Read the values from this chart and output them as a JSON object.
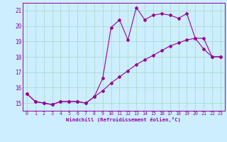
{
  "title": "",
  "xlabel": "Windchill (Refroidissement éolien,°C)",
  "ylabel": "",
  "background_color": "#cceeff",
  "line_color": "#990099",
  "grid_color": "#aaddcc",
  "xlim": [
    -0.5,
    23.5
  ],
  "ylim": [
    14.5,
    21.5
  ],
  "yticks": [
    15,
    16,
    17,
    18,
    19,
    20,
    21
  ],
  "xticks": [
    0,
    1,
    2,
    3,
    4,
    5,
    6,
    7,
    8,
    9,
    10,
    11,
    12,
    13,
    14,
    15,
    16,
    17,
    18,
    19,
    20,
    21,
    22,
    23
  ],
  "series1_x": [
    0,
    1,
    2,
    3,
    4,
    5,
    6,
    7,
    8,
    9,
    10,
    11,
    12,
    13,
    14,
    15,
    16,
    17,
    18,
    19,
    20,
    21,
    22,
    23
  ],
  "series1_y": [
    15.6,
    15.1,
    15.0,
    14.9,
    15.1,
    15.1,
    15.1,
    15.0,
    15.4,
    16.6,
    19.9,
    20.4,
    19.1,
    21.2,
    20.4,
    20.7,
    20.8,
    20.7,
    20.5,
    20.8,
    19.2,
    18.5,
    18.0,
    18.0
  ],
  "series2_x": [
    0,
    1,
    2,
    3,
    4,
    5,
    6,
    7,
    8,
    9,
    10,
    11,
    12,
    13,
    14,
    15,
    16,
    17,
    18,
    19,
    20,
    21,
    22,
    23
  ],
  "series2_y": [
    15.6,
    15.1,
    15.0,
    14.9,
    15.1,
    15.1,
    15.1,
    15.0,
    15.4,
    15.8,
    16.3,
    16.7,
    17.1,
    17.5,
    17.8,
    18.1,
    18.4,
    18.7,
    18.9,
    19.1,
    19.2,
    19.2,
    18.0,
    18.0
  ]
}
